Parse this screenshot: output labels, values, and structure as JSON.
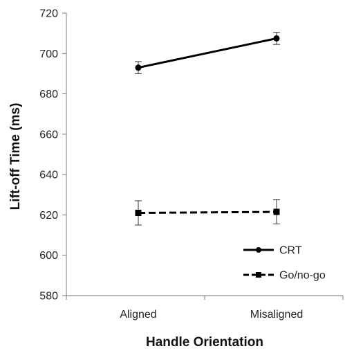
{
  "chart_data": {
    "type": "line",
    "xlabel": "Handle Orientation",
    "ylabel": "Lift-off Time (ms)",
    "categories": [
      "Aligned",
      "Misaligned"
    ],
    "ylim": [
      580,
      720
    ],
    "yticks": [
      580,
      600,
      620,
      640,
      660,
      680,
      700,
      720
    ],
    "grid": false,
    "legend_position": "bottom-right",
    "series": [
      {
        "name": "CRT",
        "values": [
          693,
          707.5
        ],
        "errors": [
          3,
          3
        ],
        "line_style": "solid",
        "marker": "circle",
        "color": "#000000"
      },
      {
        "name": "Go/no-go",
        "values": [
          621,
          621.5
        ],
        "errors": [
          6,
          6
        ],
        "line_style": "dashed",
        "marker": "square",
        "color": "#000000"
      }
    ]
  }
}
